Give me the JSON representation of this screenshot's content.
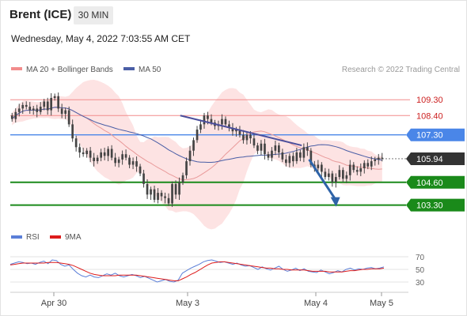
{
  "header": {
    "title": "Brent (ICE)",
    "interval": "30 MIN",
    "timestamp": "Wednesday, May 4, 2022 7:03:55 AM CET"
  },
  "legend": {
    "ma20": "MA 20 + Bollinger Bands",
    "ma50": "MA 50",
    "credit": "Research © 2022 Trading Central"
  },
  "rsi_legend": {
    "rsi": "RSI",
    "ma": "9MA"
  },
  "colors": {
    "resistance": "#f28c8c",
    "resistance_text": "#cc1f1f",
    "pivot": "#4a86e8",
    "support": "#1a8a1a",
    "ma50": "#4a5ea6",
    "bollinger_fill": "#fde3e3",
    "ma20": "#e99a9a",
    "trendline": "#4b4f9c",
    "forecast_arrow": "#2e63a8",
    "candle": "#444444",
    "rsi": "#5b7fd8",
    "rsi_ma": "#dd1c1c"
  },
  "chart_data": [
    {
      "type": "candlestick",
      "title": "Brent (ICE)",
      "timeframe": "30 MIN",
      "x_axis_labels": [
        "Apr 30",
        "May 3",
        "May 4",
        "May 5"
      ],
      "ylim": [
        102.7,
        110.3
      ],
      "last_price": 105.94,
      "levels": [
        {
          "value": 109.3,
          "label": "109.30",
          "kind": "resistance"
        },
        {
          "value": 108.4,
          "label": "108.40",
          "kind": "resistance"
        },
        {
          "value": 107.3,
          "label": "107.30",
          "kind": "pivot"
        },
        {
          "value": 105.94,
          "label": "105.94",
          "kind": "last"
        },
        {
          "value": 104.6,
          "label": "104.60",
          "kind": "support"
        },
        {
          "value": 103.3,
          "label": "103.30",
          "kind": "support"
        }
      ],
      "indicators": [
        "MA 20 + Bollinger Bands",
        "MA 50"
      ],
      "trendline": {
        "from": [
          0.455,
          108.4
        ],
        "to": [
          0.78,
          106.7
        ]
      },
      "forecast": {
        "from": [
          0.8,
          105.9
        ],
        "to": [
          0.872,
          103.3
        ]
      },
      "close": [
        108.2,
        108.6,
        108.8,
        109.0,
        108.9,
        108.7,
        108.8,
        108.6,
        108.9,
        109.2,
        108.7,
        109.4,
        109.5,
        108.8,
        108.5,
        108.7,
        107.9,
        107.1,
        106.6,
        106.3,
        106.2,
        106.4,
        106.0,
        105.8,
        106.0,
        106.3,
        106.1,
        106.5,
        106.0,
        105.7,
        105.9,
        106.2,
        106.0,
        105.6,
        105.8,
        105.5,
        105.1,
        104.5,
        103.9,
        104.2,
        103.6,
        104.0,
        103.8,
        103.7,
        103.4,
        104.5,
        103.9,
        104.6,
        105.0,
        105.8,
        106.4,
        107.0,
        107.6,
        107.9,
        108.4,
        108.2,
        108.0,
        107.8,
        107.9,
        108.2,
        107.9,
        107.7,
        107.5,
        107.6,
        107.3,
        107.0,
        107.3,
        107.1,
        106.7,
        106.4,
        106.8,
        106.2,
        106.0,
        106.4,
        106.7,
        106.3,
        105.9,
        105.7,
        106.1,
        105.8,
        106.3,
        106.0,
        106.6,
        106.4,
        105.6,
        105.4,
        105.6,
        105.2,
        104.9,
        105.1,
        104.6,
        104.9,
        105.3,
        104.8,
        105.0,
        105.6,
        105.3,
        105.2,
        105.4,
        105.7,
        105.5,
        105.8,
        105.9,
        106.0,
        105.94
      ]
    },
    {
      "type": "line",
      "title": "RSI",
      "series_names": [
        "RSI",
        "9MA"
      ],
      "ylim": [
        20,
        80
      ],
      "y_ticks": [
        70,
        50,
        30
      ],
      "rsi": [
        58,
        60,
        62,
        61,
        59,
        60,
        58,
        61,
        63,
        59,
        65,
        64,
        58,
        55,
        57,
        50,
        44,
        40,
        38,
        41,
        38,
        37,
        40,
        43,
        41,
        44,
        40,
        38,
        40,
        42,
        40,
        37,
        39,
        36,
        33,
        30,
        32,
        34,
        31,
        30,
        33,
        44,
        48,
        52,
        55,
        58,
        62,
        64,
        65,
        63,
        61,
        62,
        60,
        58,
        60,
        57,
        55,
        56,
        53,
        50,
        54,
        51,
        49,
        52,
        55,
        50,
        47,
        49,
        52,
        48,
        51,
        47,
        46,
        45,
        49,
        46,
        43,
        45,
        48,
        46,
        50,
        52,
        49,
        51,
        50,
        52,
        53,
        51,
        52,
        54
      ],
      "ma9": [
        57,
        58,
        59,
        60,
        60,
        60,
        60,
        60,
        60,
        61,
        61,
        61,
        60,
        59,
        58,
        56,
        53,
        50,
        47,
        44,
        42,
        41,
        40,
        40,
        40,
        40,
        41,
        41,
        41,
        41,
        41,
        40,
        39,
        38,
        37,
        36,
        35,
        34,
        33,
        32,
        32,
        35,
        38,
        42,
        45,
        49,
        53,
        57,
        60,
        61,
        62,
        62,
        61,
        60,
        59,
        58,
        57,
        56,
        55,
        54,
        53,
        52,
        52,
        51,
        51,
        50,
        50,
        49,
        49,
        49,
        49,
        48,
        47,
        47,
        47,
        47,
        46,
        46,
        46,
        46,
        47,
        48,
        48,
        49,
        50,
        50,
        51,
        51,
        51,
        52
      ]
    }
  ]
}
